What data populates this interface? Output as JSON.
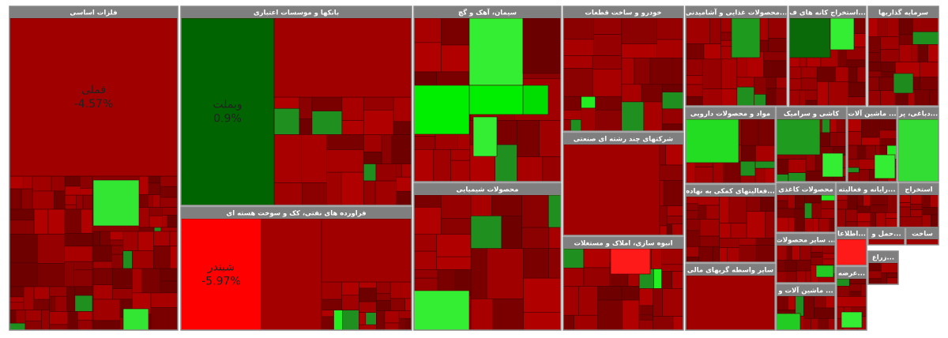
{
  "sectors": [
    {
      "title": "فلزات اساسی",
      "cells": [
        {
          "name": "فملی",
          "change": "-4.57%"
        }
      ]
    },
    {
      "title": "بانکها و موسسات اعتباری",
      "cells": [
        {
          "name": "وبملت",
          "change": "0.9%"
        }
      ]
    },
    {
      "title": "فراورده های نفتی، کک و سوخت هسته ای",
      "cells": [
        {
          "name": "شبندر",
          "change": "-5.97%"
        }
      ]
    },
    {
      "title": "سیمان، آهک و گچ"
    },
    {
      "title": "محصولات شیمیایی"
    },
    {
      "title": "خودرو و ساخت قطعات"
    },
    {
      "title": "شرکتهای چند رشته ای صنعتی"
    },
    {
      "title": "انبوه سازی، املاک و مستغلات"
    },
    {
      "title": "محصولات غذایی و آشامیدنی..."
    },
    {
      "title": "استخراج کانه های ف..."
    },
    {
      "title": "سرمایه گذاریها"
    },
    {
      "title": "مواد و محصولات دارویی"
    },
    {
      "title": "کاشی و سرامیک"
    },
    {
      "title": "ماشین آلات ..."
    },
    {
      "title": "دباغی، پر..."
    },
    {
      "title": "فعالیتهای کمکی به نهاده..."
    },
    {
      "title": "محصولات کاغذی"
    },
    {
      "title": "رایانه و فعالیته..."
    },
    {
      "title": "استخراج"
    },
    {
      "title": "سایر واسطه گریهای مالی"
    },
    {
      "title": "سایر محصولات ..."
    },
    {
      "title": "ماشین آلات و ..."
    },
    {
      "title": "اطلاعا..."
    },
    {
      "title": "حمل و..."
    },
    {
      "title": "ساخت"
    },
    {
      "title": "زراع..."
    },
    {
      "title": "عرضه..."
    }
  ]
}
